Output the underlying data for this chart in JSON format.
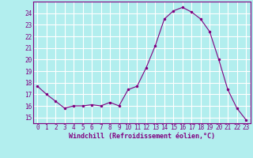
{
  "x": [
    0,
    1,
    2,
    3,
    4,
    5,
    6,
    7,
    8,
    9,
    10,
    11,
    12,
    13,
    14,
    15,
    16,
    17,
    18,
    19,
    20,
    21,
    22,
    23
  ],
  "y": [
    17.7,
    17.0,
    16.4,
    15.8,
    16.0,
    16.0,
    16.1,
    16.0,
    16.3,
    16.0,
    17.4,
    17.7,
    19.3,
    21.2,
    23.5,
    24.2,
    24.5,
    24.1,
    23.5,
    22.4,
    20.0,
    17.4,
    15.8,
    14.8
  ],
  "line_color": "#800080",
  "marker_color": "#800080",
  "bg_color": "#b2eeee",
  "grid_color": "#ffffff",
  "xlabel": "Windchill (Refroidissement éolien,°C)",
  "ylabel_ticks": [
    15,
    16,
    17,
    18,
    19,
    20,
    21,
    22,
    23,
    24
  ],
  "ylim": [
    14.5,
    25.0
  ],
  "xlim": [
    -0.5,
    23.5
  ],
  "tick_color": "#800080",
  "label_color": "#800080",
  "tick_fontsize": 5.5,
  "xlabel_fontsize": 6.0
}
